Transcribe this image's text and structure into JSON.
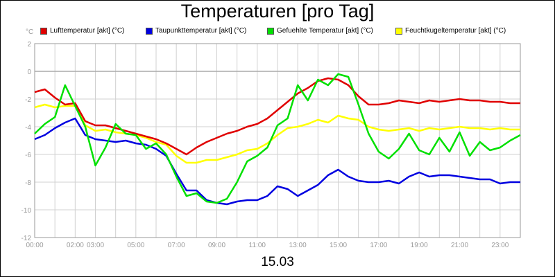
{
  "chart_data": {
    "type": "line",
    "title": "Temperaturen [pro Tag]",
    "xlabel": "15.03",
    "ylabel": "°C",
    "ylim": [
      -12,
      2
    ],
    "yticks": [
      2,
      0,
      -2,
      -4,
      -6,
      -8,
      -10,
      -12
    ],
    "xlim": [
      0,
      24
    ],
    "xticks": [
      {
        "h": 0,
        "label": "00:00"
      },
      {
        "h": 1,
        "label": ""
      },
      {
        "h": 2,
        "label": "02:00"
      },
      {
        "h": 3,
        "label": "03:00"
      },
      {
        "h": 4,
        "label": ""
      },
      {
        "h": 5,
        "label": "05:00"
      },
      {
        "h": 6,
        "label": ""
      },
      {
        "h": 7,
        "label": "07:00"
      },
      {
        "h": 8,
        "label": ""
      },
      {
        "h": 9,
        "label": "09:00"
      },
      {
        "h": 10,
        "label": ""
      },
      {
        "h": 11,
        "label": "11:00"
      },
      {
        "h": 12,
        "label": ""
      },
      {
        "h": 13,
        "label": "13:00"
      },
      {
        "h": 14,
        "label": ""
      },
      {
        "h": 15,
        "label": "15:00"
      },
      {
        "h": 16,
        "label": ""
      },
      {
        "h": 17,
        "label": "17:00"
      },
      {
        "h": 18,
        "label": ""
      },
      {
        "h": 19,
        "label": "19:00"
      },
      {
        "h": 20,
        "label": ""
      },
      {
        "h": 21,
        "label": "21:00"
      },
      {
        "h": 22,
        "label": ""
      },
      {
        "h": 23,
        "label": "23:00"
      },
      {
        "h": 24,
        "label": ""
      }
    ],
    "grid": true,
    "legend_position": "top",
    "series": [
      {
        "name": "Lufttemperatur [akt] (°C)",
        "color": "#e00000",
        "x": [
          0,
          0.5,
          1,
          1.5,
          2,
          2.5,
          3,
          3.5,
          4,
          4.5,
          5,
          5.5,
          6,
          6.5,
          7,
          7.5,
          8,
          8.5,
          9,
          9.5,
          10,
          10.5,
          11,
          11.5,
          12,
          12.5,
          13,
          13.5,
          14,
          14.5,
          15,
          15.5,
          16,
          16.5,
          17,
          17.5,
          18,
          18.5,
          19,
          19.5,
          20,
          20.5,
          21,
          21.5,
          22,
          22.5,
          23,
          23.5,
          24
        ],
        "values": [
          -1.5,
          -1.3,
          -1.9,
          -2.4,
          -2.3,
          -3.6,
          -3.9,
          -3.9,
          -4.1,
          -4.3,
          -4.5,
          -4.7,
          -4.9,
          -5.2,
          -5.6,
          -6,
          -5.5,
          -5.1,
          -4.8,
          -4.5,
          -4.3,
          -4,
          -3.8,
          -3.4,
          -2.8,
          -2.2,
          -1.6,
          -1.2,
          -0.7,
          -0.5,
          -0.6,
          -1,
          -1.8,
          -2.4,
          -2.4,
          -2.3,
          -2.1,
          -2.2,
          -2.3,
          -2.1,
          -2.2,
          -2.1,
          -2,
          -2.1,
          -2.1,
          -2.2,
          -2.2,
          -2.3,
          -2.3
        ]
      },
      {
        "name": "Taupunkttemperatur [akt] (°C)",
        "color": "#0000e0",
        "x": [
          0,
          0.5,
          1,
          1.5,
          2,
          2.5,
          3,
          3.5,
          4,
          4.5,
          5,
          5.5,
          6,
          6.5,
          7,
          7.5,
          8,
          8.5,
          9,
          9.5,
          10,
          10.5,
          11,
          11.5,
          12,
          12.5,
          13,
          13.5,
          14,
          14.5,
          15,
          15.5,
          16,
          16.5,
          17,
          17.5,
          18,
          18.5,
          19,
          19.5,
          20,
          20.5,
          21,
          21.5,
          22,
          22.5,
          23,
          23.5,
          24
        ],
        "values": [
          -4.9,
          -4.6,
          -4.1,
          -3.7,
          -3.4,
          -4.6,
          -4.9,
          -5,
          -5.1,
          -5,
          -5.2,
          -5.3,
          -5.6,
          -6.1,
          -7.4,
          -8.6,
          -8.6,
          -9.3,
          -9.5,
          -9.6,
          -9.4,
          -9.3,
          -9.3,
          -9.0,
          -8.3,
          -8.5,
          -9.0,
          -8.6,
          -8.2,
          -7.5,
          -7.1,
          -7.6,
          -7.9,
          -8,
          -8.0,
          -7.9,
          -8.1,
          -7.6,
          -7.3,
          -7.6,
          -7.5,
          -7.5,
          -7.6,
          -7.7,
          -7.8,
          -7.8,
          -8.1,
          -8.0,
          -8.0
        ]
      },
      {
        "name": "Gefuehlte Temperatur [akt] (°C)",
        "color": "#00e000",
        "x": [
          0,
          0.5,
          1,
          1.5,
          2,
          2.5,
          3,
          3.5,
          4,
          4.5,
          5,
          5.5,
          6,
          6.5,
          7,
          7.5,
          8,
          8.5,
          9,
          9.5,
          10,
          10.5,
          11,
          11.5,
          12,
          12.5,
          13,
          13.5,
          14,
          14.5,
          15,
          15.5,
          16,
          16.5,
          17,
          17.5,
          18,
          18.5,
          19,
          19.5,
          20,
          20.5,
          21,
          21.5,
          22,
          22.5,
          23,
          23.5,
          24
        ],
        "values": [
          -4.5,
          -3.8,
          -3.3,
          -1.0,
          -2.5,
          -4.0,
          -6.8,
          -5.5,
          -3.8,
          -4.5,
          -4.6,
          -5.6,
          -5.2,
          -6.0,
          -7.6,
          -9.0,
          -8.8,
          -9.4,
          -9.5,
          -9.2,
          -8.0,
          -6.5,
          -6.1,
          -5.5,
          -3.9,
          -3.4,
          -1.0,
          -2.1,
          -0.6,
          -1.0,
          -0.2,
          -0.4,
          -2.4,
          -4.5,
          -5.8,
          -6.3,
          -5.6,
          -4.5,
          -5.7,
          -6.0,
          -4.8,
          -5.8,
          -4.4,
          -6.1,
          -5.1,
          -5.7,
          -5.5,
          -5.0,
          -4.6
        ]
      },
      {
        "name": "Feuchtkugeltemperatur [akt] (°C)",
        "color": "#ffff00",
        "x": [
          0,
          0.5,
          1,
          1.5,
          2,
          2.5,
          3,
          3.5,
          4,
          4.5,
          5,
          5.5,
          6,
          6.5,
          7,
          7.5,
          8,
          8.5,
          9,
          9.5,
          10,
          10.5,
          11,
          11.5,
          12,
          12.5,
          13,
          13.5,
          14,
          14.5,
          15,
          15.5,
          16,
          16.5,
          17,
          17.5,
          18,
          18.5,
          19,
          19.5,
          20,
          20.5,
          21,
          21.5,
          22,
          22.5,
          23,
          23.5,
          24
        ],
        "values": [
          -2.6,
          -2.4,
          -2.6,
          -2.5,
          -2.5,
          -3.9,
          -4.3,
          -4.2,
          -4.4,
          -4.5,
          -4.6,
          -4.8,
          -5.1,
          -5.3,
          -6.1,
          -6.6,
          -6.6,
          -6.4,
          -6.4,
          -6.2,
          -6.0,
          -5.7,
          -5.6,
          -5.2,
          -4.6,
          -4.1,
          -4.0,
          -3.8,
          -3.5,
          -3.7,
          -3.2,
          -3.4,
          -3.5,
          -4.0,
          -4.2,
          -4.3,
          -4.2,
          -4.1,
          -4.3,
          -4.1,
          -4.2,
          -4.1,
          -4.0,
          -4.1,
          -4.1,
          -4.2,
          -4.1,
          -4.2,
          -4.2
        ]
      }
    ]
  }
}
